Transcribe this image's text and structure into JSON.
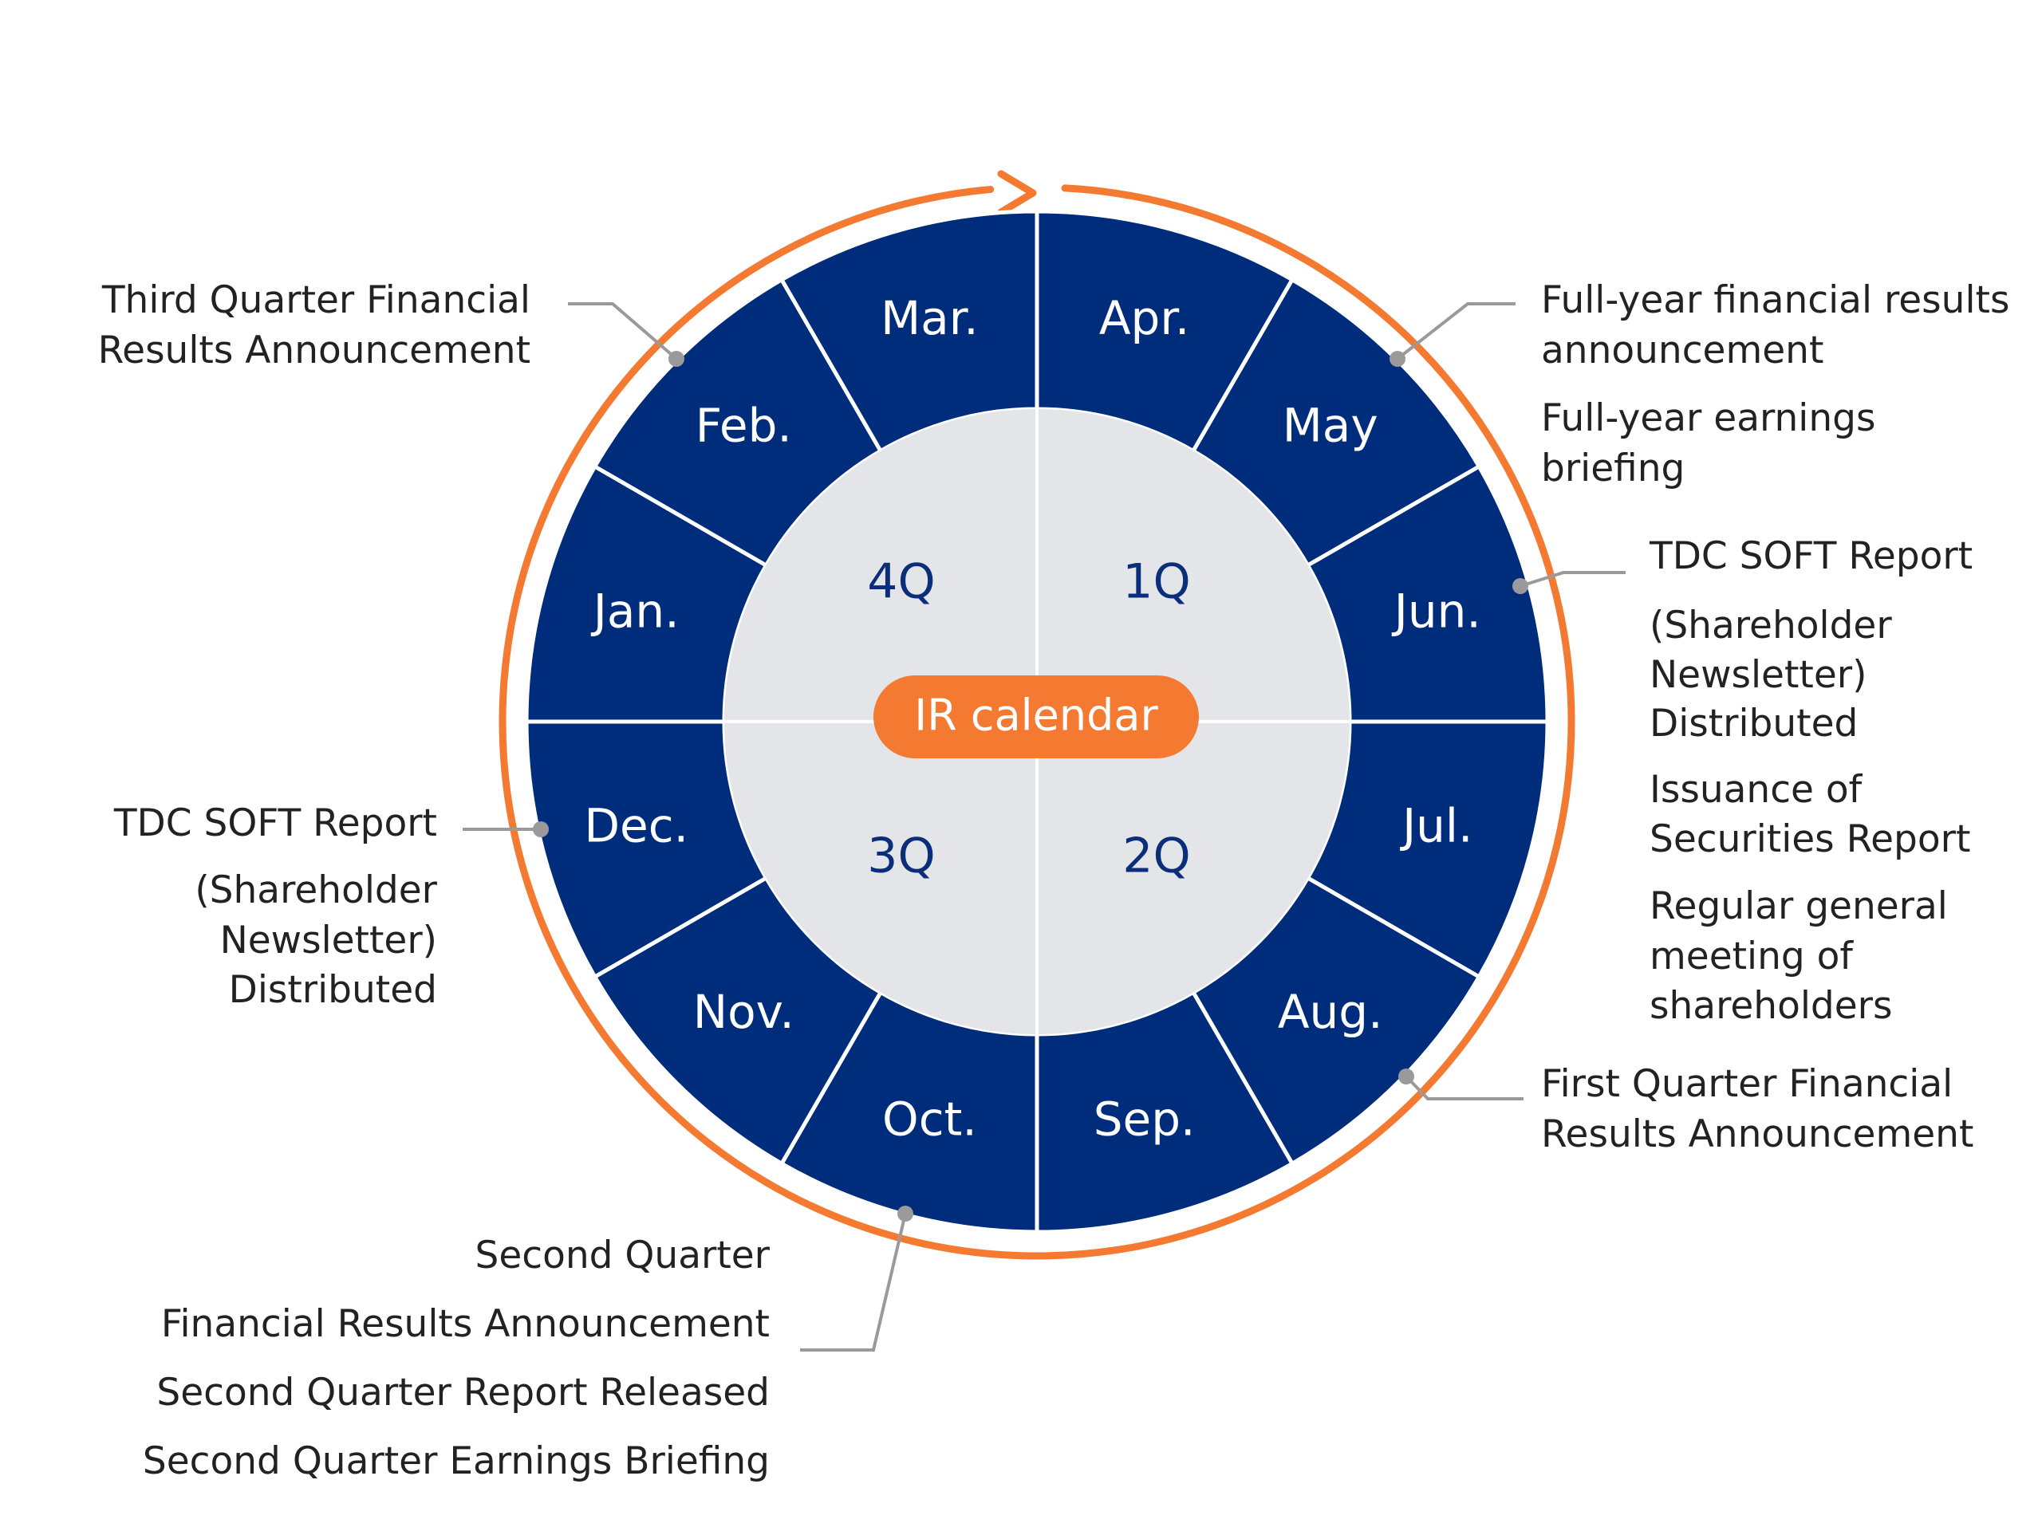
{
  "center_label": "IR calendar",
  "colors": {
    "ring": "#002c7c",
    "inner_circle": "#e3e5e8",
    "accent": "#f47a32",
    "leader": "#9a9a9a",
    "text": "#222222"
  },
  "months": [
    {
      "key": "apr",
      "label": "Apr."
    },
    {
      "key": "may",
      "label": "May"
    },
    {
      "key": "jun",
      "label": "Jun."
    },
    {
      "key": "jul",
      "label": "Jul."
    },
    {
      "key": "aug",
      "label": "Aug."
    },
    {
      "key": "sep",
      "label": "Sep."
    },
    {
      "key": "oct",
      "label": "Oct."
    },
    {
      "key": "nov",
      "label": "Nov."
    },
    {
      "key": "dec",
      "label": "Dec."
    },
    {
      "key": "jan",
      "label": "Jan."
    },
    {
      "key": "feb",
      "label": "Feb."
    },
    {
      "key": "mar",
      "label": "Mar."
    }
  ],
  "quarters": {
    "q1": "1Q",
    "q2": "2Q",
    "q3": "3Q",
    "q4": "4Q"
  },
  "annotations": {
    "may": [
      "Full-year financial results",
      "announcement",
      "Full-year earnings",
      "briefing"
    ],
    "jun": [
      "TDC SOFT Report",
      "(Shareholder",
      "Newsletter)",
      "Distributed",
      "Issuance of",
      "Securities Report",
      "Regular general",
      "meeting of",
      "shareholders"
    ],
    "aug": [
      "First Quarter Financial",
      "Results Announcement"
    ],
    "oct": [
      "Second Quarter",
      "Financial Results Announcement",
      "Second Quarter Report Released",
      "Second Quarter Earnings Briefing"
    ],
    "dec": [
      "TDC SOFT Report",
      "(Shareholder",
      "Newsletter)",
      "Distributed"
    ],
    "feb": [
      "Third Quarter Financial",
      "Results Announcement"
    ]
  }
}
